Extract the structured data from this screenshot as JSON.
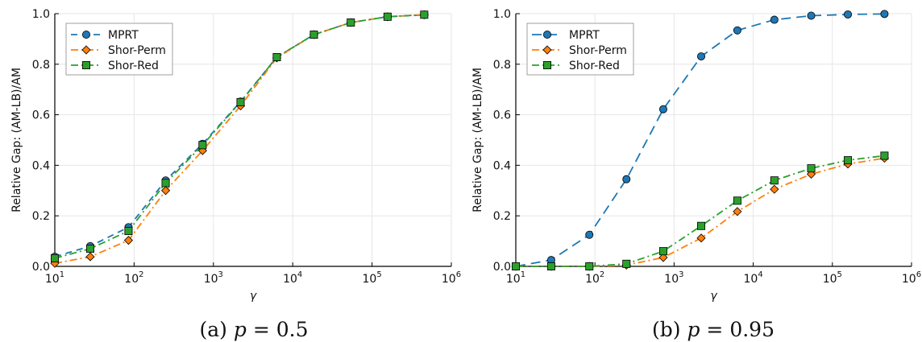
{
  "chart_data": [
    {
      "type": "line",
      "caption": "(a) p = 0.5",
      "caption_parts": {
        "prefix": "(a) ",
        "var": "p",
        "rest": " = 0.5"
      },
      "xlabel": "γ",
      "ylabel": "Relative Gap: (AM-LB)/AM",
      "x_scale": "log",
      "xlim": [
        10,
        1000000
      ],
      "ylim": [
        0,
        1
      ],
      "x_ticks": [
        {
          "base": "10",
          "exp": "1"
        },
        {
          "base": "10",
          "exp": "2"
        },
        {
          "base": "10",
          "exp": "3"
        },
        {
          "base": "10",
          "exp": "4"
        },
        {
          "base": "10",
          "exp": "5"
        },
        {
          "base": "10",
          "exp": "6"
        }
      ],
      "y_ticks": [
        "0.0",
        "0.2",
        "0.4",
        "0.6",
        "0.8",
        "1.0"
      ],
      "grid": true,
      "legend": "top-left",
      "x": [
        10,
        28,
        85,
        250,
        730,
        2200,
        6300,
        18500,
        54000,
        157000,
        455000
      ],
      "series": [
        {
          "name": "MPRT",
          "color": "#1f77b4",
          "marker": "circle",
          "dash": "8,6",
          "values": [
            0.038,
            0.08,
            0.155,
            0.34,
            0.485,
            0.652,
            0.828,
            0.917,
            0.965,
            0.988,
            0.995
          ]
        },
        {
          "name": "Shor-Perm",
          "color": "#ff7f0e",
          "marker": "diamond",
          "dash": "9,4,2,4",
          "values": [
            0.012,
            0.038,
            0.103,
            0.3,
            0.458,
            0.635,
            0.825,
            0.917,
            0.965,
            0.988,
            0.996
          ]
        },
        {
          "name": "Shor-Red",
          "color": "#2ca02c",
          "marker": "square",
          "dash": "9,4,2,4",
          "values": [
            0.032,
            0.07,
            0.14,
            0.33,
            0.48,
            0.65,
            0.828,
            0.917,
            0.965,
            0.988,
            0.996
          ]
        }
      ]
    },
    {
      "type": "line",
      "caption": "(b) p = 0.95",
      "caption_parts": {
        "prefix": "(b) ",
        "var": "p",
        "rest": " = 0.95"
      },
      "xlabel": "γ",
      "ylabel": "Relative Gap: (AM-LB)/AM",
      "x_scale": "log",
      "xlim": [
        10,
        1000000
      ],
      "ylim": [
        0,
        1
      ],
      "x_ticks": [
        {
          "base": "10",
          "exp": "1"
        },
        {
          "base": "10",
          "exp": "2"
        },
        {
          "base": "10",
          "exp": "3"
        },
        {
          "base": "10",
          "exp": "4"
        },
        {
          "base": "10",
          "exp": "5"
        },
        {
          "base": "10",
          "exp": "6"
        }
      ],
      "y_ticks": [
        "0.0",
        "0.2",
        "0.4",
        "0.6",
        "0.8",
        "1.0"
      ],
      "grid": true,
      "legend": "top-left",
      "x": [
        10,
        28,
        85,
        250,
        730,
        2200,
        6300,
        18500,
        54000,
        157000,
        455000
      ],
      "series": [
        {
          "name": "MPRT",
          "color": "#1f77b4",
          "marker": "circle",
          "dash": "12,7",
          "values": [
            0.0,
            0.025,
            0.125,
            0.345,
            0.622,
            0.831,
            0.934,
            0.976,
            0.992,
            0.997,
            0.999
          ]
        },
        {
          "name": "Shor-Perm",
          "color": "#ff7f0e",
          "marker": "diamond",
          "dash": "9,4,2,4",
          "values": [
            0.0,
            0.0,
            0.0,
            0.005,
            0.035,
            0.112,
            0.217,
            0.305,
            0.365,
            0.405,
            0.428
          ]
        },
        {
          "name": "Shor-Red",
          "color": "#2ca02c",
          "marker": "square",
          "dash": "9,4,2,4",
          "values": [
            0.0,
            0.0,
            0.0,
            0.01,
            0.06,
            0.16,
            0.26,
            0.34,
            0.388,
            0.42,
            0.438
          ]
        }
      ]
    }
  ]
}
